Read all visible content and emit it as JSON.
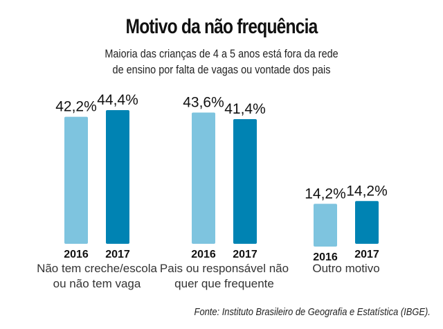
{
  "chart_data": {
    "type": "bar",
    "title": "Motivo da não frequência",
    "subtitle": [
      "Maioria das crianças de 4 a 5 anos está fora da rede",
      "de ensino por falta de vagas ou vontade dos pais"
    ],
    "categories": [
      [
        "Não tem creche/escola",
        "ou não tem vaga"
      ],
      [
        "Pais ou responsável não",
        "quer que frequente"
      ],
      [
        "Outro motivo"
      ]
    ],
    "series": [
      {
        "name": "2016",
        "color": "#7ec4df",
        "values": [
          42.2,
          43.6,
          14.2
        ],
        "labels": [
          "42,2%",
          "43,6%",
          "14,2%"
        ]
      },
      {
        "name": "2017",
        "color": "#0083b3",
        "values": [
          44.4,
          41.4,
          14.2
        ],
        "labels": [
          "44,4%",
          "41,4%",
          "14,2%"
        ]
      }
    ],
    "xlabel": "",
    "ylabel": "",
    "ylim": [
      0,
      45
    ],
    "grid": false,
    "legend": "none",
    "source": "Fonte: Instituto Brasileiro de Geografia e Estatística (IBGE)."
  }
}
